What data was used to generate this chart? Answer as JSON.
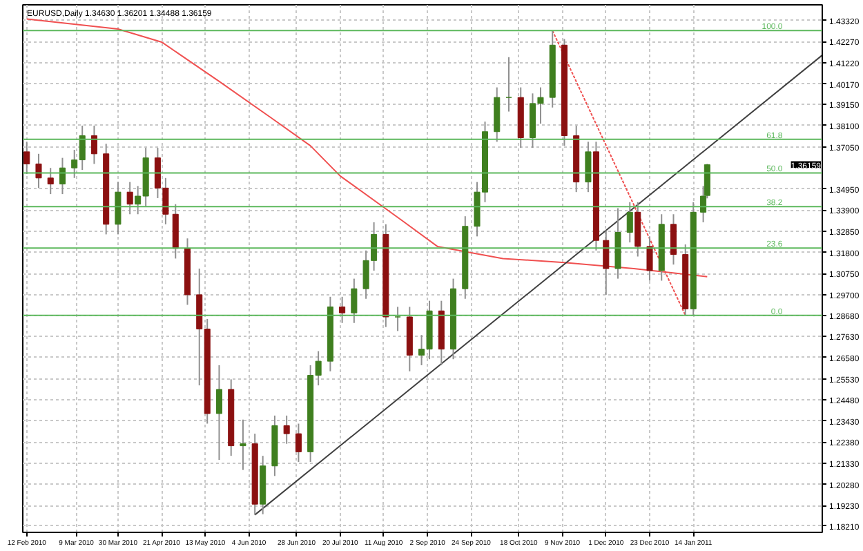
{
  "chart_data": {
    "type": "candlestick",
    "title": "EURUSD,Daily  1.34630 1.36201 1.34488 1.36159",
    "x": [
      "2010-02-12",
      "2010-02-18",
      "2010-02-24",
      "2010-03-02",
      "2010-03-08",
      "2010-03-12",
      "2010-03-18",
      "2010-03-24",
      "2010-03-30",
      "2010-04-05",
      "2010-04-09",
      "2010-04-13",
      "2010-04-19",
      "2010-04-23",
      "2010-04-28",
      "2010-05-04",
      "2010-05-10",
      "2010-05-14",
      "2010-05-20",
      "2010-05-26",
      "2010-06-01",
      "2010-06-07",
      "2010-06-11",
      "2010-06-17",
      "2010-06-23",
      "2010-06-29",
      "2010-07-05",
      "2010-07-09",
      "2010-07-15",
      "2010-07-21",
      "2010-07-27",
      "2010-08-02",
      "2010-08-06",
      "2010-08-12",
      "2010-08-18",
      "2010-08-24",
      "2010-08-30",
      "2010-09-03",
      "2010-09-09",
      "2010-09-15",
      "2010-09-21",
      "2010-09-27",
      "2010-10-01",
      "2010-10-07",
      "2010-10-13",
      "2010-10-19",
      "2010-10-25",
      "2010-10-29",
      "2010-11-04",
      "2010-11-10",
      "2010-11-16",
      "2010-11-22",
      "2010-11-26",
      "2010-12-01",
      "2010-12-07",
      "2010-12-13",
      "2010-12-17",
      "2010-12-23",
      "2010-12-29",
      "2011-01-04",
      "2011-01-10",
      "2011-01-14",
      "2011-01-19",
      "2011-01-21"
    ],
    "ohlc": [
      [
        1.368,
        1.373,
        1.357,
        1.362
      ],
      [
        1.362,
        1.367,
        1.35,
        1.355
      ],
      [
        1.355,
        1.36,
        1.347,
        1.352
      ],
      [
        1.352,
        1.365,
        1.347,
        1.36
      ],
      [
        1.36,
        1.369,
        1.355,
        1.364
      ],
      [
        1.364,
        1.381,
        1.359,
        1.376
      ],
      [
        1.376,
        1.381,
        1.362,
        1.367
      ],
      [
        1.367,
        1.372,
        1.327,
        1.332
      ],
      [
        1.332,
        1.353,
        1.327,
        1.348
      ],
      [
        1.348,
        1.353,
        1.337,
        1.342
      ],
      [
        1.342,
        1.351,
        1.337,
        1.346
      ],
      [
        1.346,
        1.37,
        1.341,
        1.365
      ],
      [
        1.365,
        1.37,
        1.345,
        1.35
      ],
      [
        1.35,
        1.355,
        1.332,
        1.337
      ],
      [
        1.337,
        1.342,
        1.315,
        1.32
      ],
      [
        1.32,
        1.325,
        1.292,
        1.297
      ],
      [
        1.297,
        1.31,
        1.252,
        1.28
      ],
      [
        1.28,
        1.285,
        1.233,
        1.238
      ],
      [
        1.238,
        1.262,
        1.215,
        1.25
      ],
      [
        1.25,
        1.255,
        1.217,
        1.222
      ],
      [
        1.222,
        1.235,
        1.21,
        1.223
      ],
      [
        1.223,
        1.228,
        1.1877,
        1.193
      ],
      [
        1.193,
        1.217,
        1.188,
        1.212
      ],
      [
        1.212,
        1.237,
        1.207,
        1.232
      ],
      [
        1.232,
        1.237,
        1.223,
        1.228
      ],
      [
        1.228,
        1.233,
        1.214,
        1.219
      ],
      [
        1.219,
        1.262,
        1.214,
        1.257
      ],
      [
        1.257,
        1.269,
        1.252,
        1.264
      ],
      [
        1.264,
        1.296,
        1.259,
        1.291
      ],
      [
        1.291,
        1.296,
        1.283,
        1.288
      ],
      [
        1.288,
        1.305,
        1.283,
        1.3
      ],
      [
        1.3,
        1.319,
        1.295,
        1.314
      ],
      [
        1.314,
        1.333,
        1.309,
        1.327
      ],
      [
        1.327,
        1.332,
        1.281,
        1.286
      ],
      [
        1.286,
        1.291,
        1.279,
        1.286
      ],
      [
        1.286,
        1.291,
        1.259,
        1.267
      ],
      [
        1.267,
        1.277,
        1.262,
        1.27
      ],
      [
        1.27,
        1.294,
        1.265,
        1.289
      ],
      [
        1.289,
        1.294,
        1.262,
        1.27
      ],
      [
        1.27,
        1.305,
        1.265,
        1.3
      ],
      [
        1.3,
        1.336,
        1.295,
        1.331
      ],
      [
        1.331,
        1.353,
        1.326,
        1.348
      ],
      [
        1.348,
        1.383,
        1.343,
        1.378
      ],
      [
        1.378,
        1.4,
        1.373,
        1.395
      ],
      [
        1.395,
        1.415,
        1.388,
        1.395
      ],
      [
        1.395,
        1.4,
        1.37,
        1.375
      ],
      [
        1.375,
        1.397,
        1.37,
        1.392
      ],
      [
        1.392,
        1.4,
        1.382,
        1.395
      ],
      [
        1.395,
        1.4282,
        1.39,
        1.421
      ],
      [
        1.421,
        1.424,
        1.371,
        1.376
      ],
      [
        1.376,
        1.381,
        1.348,
        1.353
      ],
      [
        1.353,
        1.373,
        1.348,
        1.368
      ],
      [
        1.368,
        1.373,
        1.319,
        1.324
      ],
      [
        1.324,
        1.329,
        1.297,
        1.31
      ],
      [
        1.31,
        1.34,
        1.305,
        1.328
      ],
      [
        1.328,
        1.343,
        1.323,
        1.338
      ],
      [
        1.338,
        1.343,
        1.316,
        1.321
      ],
      [
        1.321,
        1.326,
        1.304,
        1.309
      ],
      [
        1.309,
        1.337,
        1.304,
        1.332
      ],
      [
        1.332,
        1.337,
        1.312,
        1.317
      ],
      [
        1.317,
        1.322,
        1.2868,
        1.29
      ],
      [
        1.29,
        1.343,
        1.287,
        1.338
      ],
      [
        1.338,
        1.351,
        1.333,
        1.346
      ],
      [
        1.3463,
        1.36201,
        1.34488,
        1.36159
      ]
    ],
    "colors": [
      "#8b1010",
      "#8b1010",
      "#8b1010",
      "#3f7f1f",
      "#3f7f1f",
      "#3f7f1f",
      "#8b1010",
      "#8b1010",
      "#3f7f1f",
      "#8b1010",
      "#3f7f1f",
      "#3f7f1f",
      "#8b1010",
      "#8b1010",
      "#8b1010",
      "#8b1010",
      "#8b1010",
      "#8b1010",
      "#3f7f1f",
      "#8b1010",
      "#3f7f1f",
      "#8b1010",
      "#3f7f1f",
      "#3f7f1f",
      "#8b1010",
      "#8b1010",
      "#3f7f1f",
      "#3f7f1f",
      "#3f7f1f",
      "#8b1010",
      "#3f7f1f",
      "#3f7f1f",
      "#3f7f1f",
      "#8b1010",
      "#3f7f1f",
      "#8b1010",
      "#3f7f1f",
      "#3f7f1f",
      "#8b1010",
      "#3f7f1f",
      "#3f7f1f",
      "#3f7f1f",
      "#3f7f1f",
      "#3f7f1f",
      "#3f7f1f",
      "#8b1010",
      "#3f7f1f",
      "#3f7f1f",
      "#3f7f1f",
      "#8b1010",
      "#8b1010",
      "#3f7f1f",
      "#8b1010",
      "#8b1010",
      "#3f7f1f",
      "#3f7f1f",
      "#8b1010",
      "#8b1010",
      "#3f7f1f",
      "#8b1010",
      "#8b1010",
      "#3f7f1f",
      "#3f7f1f",
      "#3f7f1f"
    ],
    "series": [
      {
        "type": "line",
        "color": "#f05050",
        "x": [
          "2010-02-12",
          "2010-03-30",
          "2010-04-21",
          "2010-05-20",
          "2010-06-15",
          "2010-07-05",
          "2010-07-20",
          "2010-08-20",
          "2010-09-07",
          "2010-10-10",
          "2010-11-10",
          "2010-12-15",
          "2011-01-21"
        ],
        "values": [
          1.434,
          1.429,
          1.4225,
          1.403,
          1.385,
          1.371,
          1.356,
          1.334,
          1.321,
          1.315,
          1.313,
          1.31,
          1.306
        ]
      },
      {
        "type": "line",
        "color": "#404040",
        "x": [
          "2010-06-07",
          "2011-03-20"
        ],
        "values": [
          1.1877,
          1.416
        ]
      },
      {
        "type": "line",
        "color": "#f05050",
        "line_style": "dotted",
        "x": [
          "2010-11-04",
          "2011-01-10"
        ],
        "values": [
          1.4282,
          1.2868
        ]
      }
    ],
    "ref_lines": [
      {
        "axis": "y",
        "value": 1.4282,
        "color": "#5cb85c"
      },
      {
        "axis": "y",
        "value": 1.3742,
        "color": "#5cb85c"
      },
      {
        "axis": "y",
        "value": 1.3575,
        "color": "#5cb85c"
      },
      {
        "axis": "y",
        "value": 1.3408,
        "color": "#5cb85c"
      },
      {
        "axis": "y",
        "value": 1.3202,
        "color": "#5cb85c"
      },
      {
        "axis": "y",
        "value": 1.2868,
        "color": "#5cb85c"
      }
    ],
    "annotations": [
      {
        "text": "100.0",
        "x": "2011-02-28",
        "y": 1.4282
      },
      {
        "text": "61.8",
        "x": "2011-02-28",
        "y": 1.3742
      },
      {
        "text": "50.0",
        "x": "2011-02-28",
        "y": 1.3575
      },
      {
        "text": "38.2",
        "x": "2011-02-28",
        "y": 1.3408
      },
      {
        "text": "23.6",
        "x": "2011-02-28",
        "y": 1.3202
      },
      {
        "text": "0.0",
        "x": "2011-02-28",
        "y": 1.2868
      },
      "1.36159"
    ],
    "xlim": [
      "2010-02-10",
      "2011-03-20"
    ],
    "ylim": [
      1.179,
      1.441
    ],
    "xticks": [
      {
        "value": "2010-02-12",
        "label": "12 Feb 2010"
      },
      {
        "value": "2010-03-09",
        "label": "9 Mar 2010"
      },
      {
        "value": "2010-03-30",
        "label": "30 Mar 2010"
      },
      {
        "value": "2010-04-21",
        "label": "21 Apr 2010"
      },
      {
        "value": "2010-05-13",
        "label": "13 May 2010"
      },
      {
        "value": "2010-06-04",
        "label": "4 Jun 2010"
      },
      {
        "value": "2010-06-28",
        "label": "28 Jun 2010"
      },
      {
        "value": "2010-07-20",
        "label": "20 Jul 2010"
      },
      {
        "value": "2010-08-11",
        "label": "11 Aug 2010"
      },
      {
        "value": "2010-09-02",
        "label": "2 Sep 2010"
      },
      {
        "value": "2010-09-24",
        "label": "24 Sep 2010"
      },
      {
        "value": "2010-10-18",
        "label": "18 Oct 2010"
      },
      {
        "value": "2010-11-09",
        "label": "9 Nov 2010"
      },
      {
        "value": "2010-12-01",
        "label": "1 Dec 2010"
      },
      {
        "value": "2010-12-23",
        "label": "23 Dec 2010"
      },
      {
        "value": "2011-01-14",
        "label": "14 Jan 2011"
      }
    ],
    "yticks": [
      {
        "value": 1.4332,
        "label": "1.43320"
      },
      {
        "value": 1.4227,
        "label": "1.42270"
      },
      {
        "value": 1.4122,
        "label": "1.41220"
      },
      {
        "value": 1.4017,
        "label": "1.40170"
      },
      {
        "value": 1.3915,
        "label": "1.39150"
      },
      {
        "value": 1.381,
        "label": "1.38100"
      },
      {
        "value": 1.3705,
        "label": "1.37050"
      },
      {
        "value": 1.3495,
        "label": "1.34950"
      },
      {
        "value": 1.339,
        "label": "1.33900"
      },
      {
        "value": 1.3285,
        "label": "1.32850"
      },
      {
        "value": 1.318,
        "label": "1.31800"
      },
      {
        "value": 1.3075,
        "label": "1.30750"
      },
      {
        "value": 1.297,
        "label": "1.29700"
      },
      {
        "value": 1.2868,
        "label": "1.28680"
      },
      {
        "value": 1.2763,
        "label": "1.27630"
      },
      {
        "value": 1.2658,
        "label": "1.26580"
      },
      {
        "value": 1.2553,
        "label": "1.25530"
      },
      {
        "value": 1.2448,
        "label": "1.24480"
      },
      {
        "value": 1.2343,
        "label": "1.23430"
      },
      {
        "value": 1.2238,
        "label": "1.22380"
      },
      {
        "value": 1.2133,
        "label": "1.21330"
      },
      {
        "value": 1.2028,
        "label": "1.20280"
      },
      {
        "value": 1.1923,
        "label": "1.19230"
      },
      {
        "value": 1.1821,
        "label": "1.18210"
      }
    ],
    "grid": true
  }
}
